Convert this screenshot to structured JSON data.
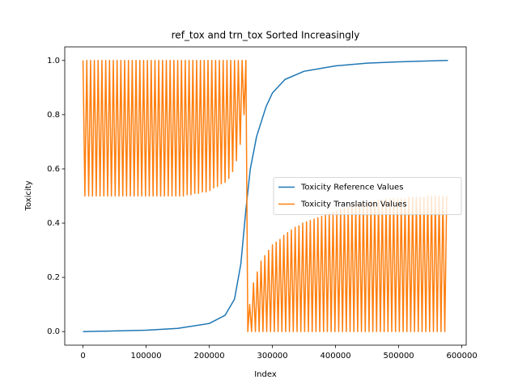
{
  "chart_data": {
    "type": "line",
    "title": "ref_tox and trn_tox Sorted Increasingly",
    "x_label": "Index",
    "y_label": "Toxicity",
    "xlim": [
      -28900,
      606900
    ],
    "ylim": [
      -0.05,
      1.05
    ],
    "xticks": [
      0,
      100000,
      200000,
      300000,
      400000,
      500000,
      600000
    ],
    "yticks": [
      {
        "value": 0,
        "label": "0.0"
      },
      0.2,
      0.4,
      0.6,
      0.8,
      {
        "value": 1,
        "label": "1.0"
      }
    ],
    "legend": "center right",
    "series": [
      {
        "name": "Toxicity Reference Values",
        "color": "#1f77b4",
        "x": [
          0,
          100000,
          150000,
          200000,
          225000,
          240000,
          250000,
          258000,
          265000,
          275000,
          290000,
          300000,
          320000,
          350000,
          400000,
          450000,
          500000,
          578000
        ],
        "values": [
          0,
          0.005,
          0.012,
          0.03,
          0.06,
          0.12,
          0.25,
          0.45,
          0.6,
          0.72,
          0.83,
          0.88,
          0.93,
          0.96,
          0.98,
          0.99,
          0.995,
          1.0
        ]
      },
      {
        "name": "Toxicity Translation Values",
        "color": "#ff7f0e",
        "x": [
          0,
          3000,
          6000,
          9000,
          12000,
          15000,
          18000,
          21000,
          24000,
          27000,
          30000,
          33000,
          36000,
          39000,
          42000,
          45000,
          48000,
          51000,
          54000,
          57000,
          60000,
          63000,
          66000,
          69000,
          72000,
          75000,
          78000,
          81000,
          84000,
          87000,
          90000,
          93000,
          96000,
          99000,
          102000,
          105000,
          108000,
          111000,
          114000,
          117000,
          120000,
          123000,
          126000,
          129000,
          132000,
          135000,
          138000,
          141000,
          144000,
          147000,
          150000,
          153000,
          156000,
          159000,
          162000,
          165000,
          168000,
          171000,
          174000,
          177000,
          180000,
          183000,
          186000,
          189000,
          192000,
          195000,
          198000,
          201000,
          204000,
          207000,
          210000,
          213000,
          216000,
          219000,
          222000,
          225000,
          228000,
          231000,
          234000,
          237000,
          240000,
          243000,
          246000,
          249000,
          252000,
          255000,
          258000,
          261000,
          264000,
          267000,
          270000,
          273000,
          276000,
          279000,
          282000,
          285000,
          288000,
          291000,
          294000,
          297000,
          300000,
          303000,
          306000,
          309000,
          312000,
          315000,
          318000,
          321000,
          324000,
          327000,
          330000,
          333000,
          336000,
          339000,
          342000,
          345000,
          348000,
          351000,
          354000,
          357000,
          360000,
          363000,
          366000,
          369000,
          372000,
          375000,
          378000,
          381000,
          384000,
          387000,
          390000,
          393000,
          396000,
          399000,
          402000,
          405000,
          408000,
          411000,
          414000,
          417000,
          420000,
          423000,
          426000,
          429000,
          432000,
          435000,
          438000,
          441000,
          444000,
          447000,
          450000,
          453000,
          456000,
          459000,
          462000,
          465000,
          468000,
          471000,
          474000,
          477000,
          480000,
          483000,
          486000,
          489000,
          492000,
          495000,
          498000,
          501000,
          504000,
          507000,
          510000,
          513000,
          516000,
          519000,
          522000,
          525000,
          528000,
          531000,
          534000,
          537000,
          540000,
          543000,
          546000,
          549000,
          552000,
          555000,
          558000,
          561000,
          564000,
          567000,
          570000,
          573000,
          576000
        ],
        "values": [
          1,
          0.5,
          1,
          0.5,
          1,
          0.5,
          1,
          0.5,
          1,
          0.5,
          1,
          0.5,
          1,
          0.5,
          1,
          0.5,
          1,
          0.5,
          1,
          0.5,
          1,
          0.5,
          1,
          0.5,
          1,
          0.5,
          1,
          0.5,
          1,
          0.5,
          1,
          0.5,
          1,
          0.5,
          1,
          0.5,
          1,
          0.5,
          1,
          0.5,
          1,
          0.5,
          1,
          0.5,
          1,
          0.5,
          1,
          0.5,
          1,
          0.5,
          1,
          0.5,
          1,
          0.5,
          1,
          0.505,
          1,
          0.505,
          1,
          0.51,
          1,
          0.51,
          1,
          0.515,
          1,
          0.515,
          1,
          0.52,
          1,
          0.53,
          1,
          0.535,
          1,
          0.545,
          1,
          0.55,
          1,
          0.565,
          1,
          0.59,
          1,
          0.63,
          1,
          0.69,
          1,
          0.8,
          1,
          0,
          0.1,
          0,
          0.18,
          0,
          0.22,
          0,
          0.26,
          0,
          0.28,
          0,
          0.3,
          0,
          0.32,
          0,
          0.33,
          0,
          0.34,
          0,
          0.355,
          0,
          0.365,
          0,
          0.375,
          0,
          0.385,
          0,
          0.39,
          0,
          0.4,
          0,
          0.405,
          0,
          0.41,
          0,
          0.415,
          0,
          0.42,
          0,
          0.425,
          0,
          0.43,
          0,
          0.435,
          0,
          0.44,
          0,
          0.445,
          0,
          0.45,
          0,
          0.455,
          0,
          0.46,
          0,
          0.465,
          0,
          0.47,
          0,
          0.47,
          0,
          0.475,
          0,
          0.475,
          0,
          0.48,
          0,
          0.48,
          0,
          0.485,
          0,
          0.485,
          0,
          0.49,
          0,
          0.49,
          0,
          0.49,
          0,
          0.49,
          0,
          0.49,
          0,
          0.49,
          0,
          0.495,
          0,
          0.495,
          0,
          0.495,
          0,
          0.495,
          0,
          0.495,
          0,
          0.5,
          0,
          0.5,
          0,
          0.5,
          0,
          0.5,
          0,
          0.5,
          0,
          0.5
        ]
      }
    ]
  }
}
